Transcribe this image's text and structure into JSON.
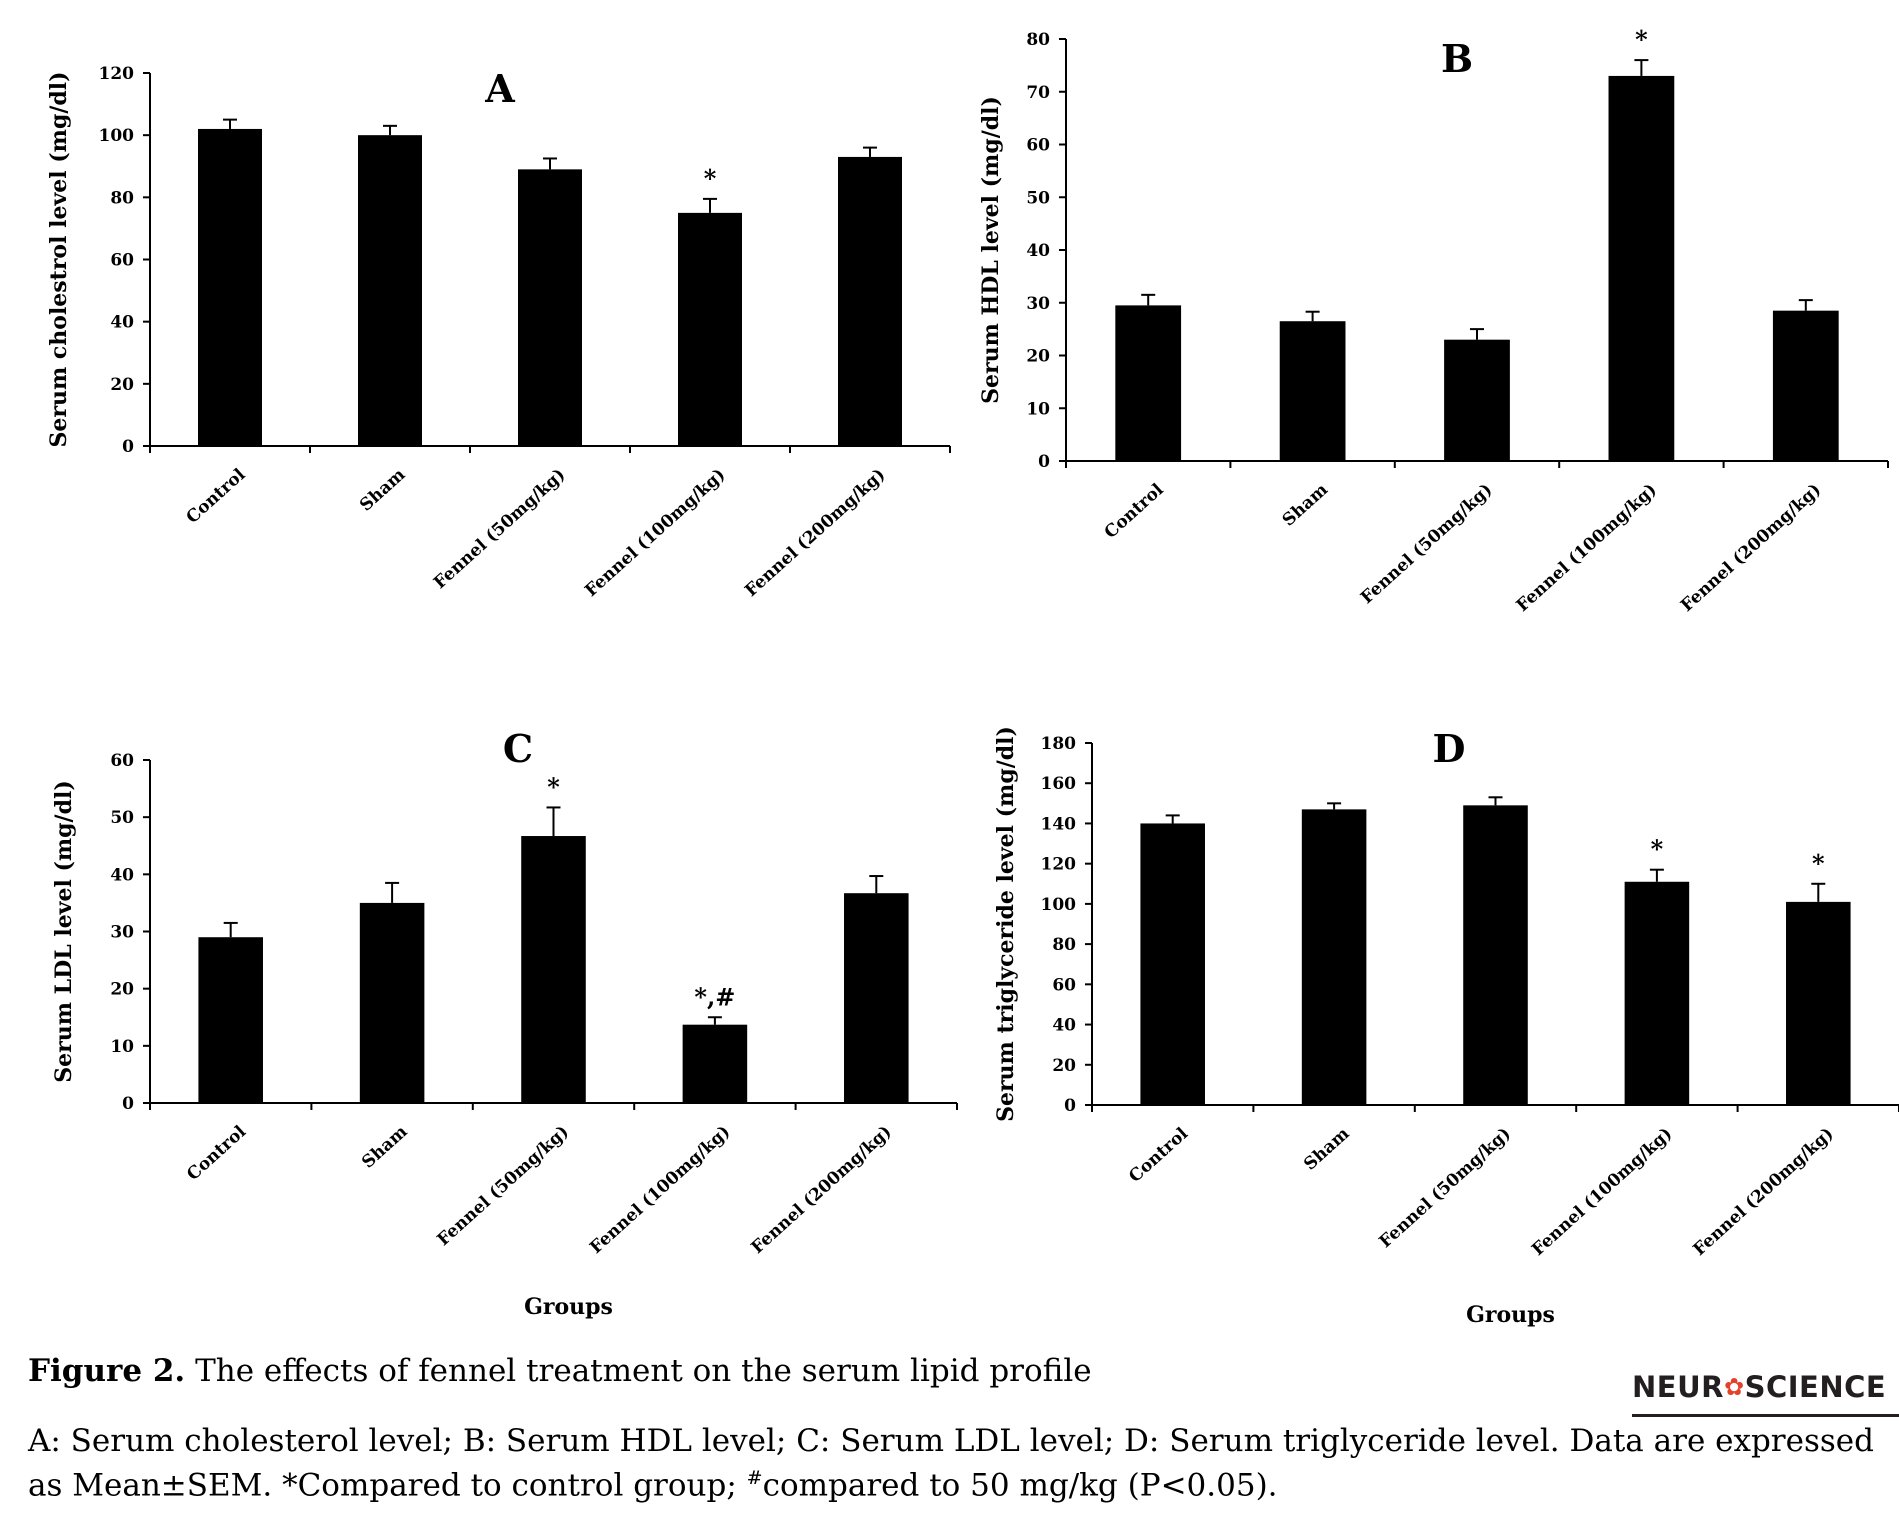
{
  "chart_data": [
    {
      "type": "bar",
      "panel": "A",
      "categories": [
        "Control",
        "Sham",
        "Fennel (50mg/kg)",
        "Fennel (100mg/kg)",
        "Fennel (200mg/kg)"
      ],
      "values": [
        102,
        100,
        89,
        75,
        93
      ],
      "errors": [
        3,
        3,
        3.5,
        4.5,
        3
      ],
      "annotations": [
        "",
        "",
        "",
        "*",
        ""
      ],
      "ylabel": "Serum  cholestrol level (mg/dl)",
      "xlabel": "",
      "ylim": [
        0,
        120
      ],
      "yticks": [
        0,
        20,
        40,
        60,
        80,
        100,
        120
      ],
      "color": "#000000"
    },
    {
      "type": "bar",
      "panel": "B",
      "categories": [
        "Control",
        "Sham",
        "Fennel (50mg/kg)",
        "Fennel (100mg/kg)",
        "Fennel (200mg/kg)"
      ],
      "values": [
        29.5,
        26.5,
        23,
        73,
        28.5
      ],
      "errors": [
        2,
        1.8,
        2,
        3,
        2
      ],
      "annotations": [
        "",
        "",
        "",
        "*",
        ""
      ],
      "ylabel": "Serum  HDL level (mg/dl)",
      "xlabel": "",
      "ylim": [
        0,
        80
      ],
      "yticks": [
        0,
        10,
        20,
        30,
        40,
        50,
        60,
        70,
        80
      ],
      "color": "#000000"
    },
    {
      "type": "bar",
      "panel": "C",
      "categories": [
        "Control",
        "Sham",
        "Fennel (50mg/kg)",
        "Fennel (100mg/kg)",
        "Fennel (200mg/kg)"
      ],
      "values": [
        29,
        35,
        46.7,
        13.7,
        36.7
      ],
      "errors": [
        2.5,
        3.5,
        5,
        1.3,
        3
      ],
      "annotations": [
        "",
        "",
        "*",
        "*,#",
        ""
      ],
      "ylabel": "Serum  LDL level (mg/dl)",
      "xlabel": "Groups",
      "ylim": [
        0,
        60
      ],
      "yticks": [
        0,
        10,
        20,
        30,
        40,
        50,
        60
      ],
      "color": "#000000"
    },
    {
      "type": "bar",
      "panel": "D",
      "categories": [
        "Control",
        "Sham",
        "Fennel (50mg/kg)",
        "Fennel (100mg/kg)",
        "Fennel (200mg/kg)"
      ],
      "values": [
        140,
        147,
        149,
        111,
        101
      ],
      "errors": [
        4,
        3,
        4,
        6,
        9
      ],
      "annotations": [
        "",
        "",
        "",
        "*",
        "*"
      ],
      "ylabel": "Serum  triglyceride  level (mg/dl)",
      "xlabel": "Groups",
      "ylim": [
        0,
        180
      ],
      "yticks": [
        0,
        20,
        40,
        60,
        80,
        100,
        120,
        140,
        160,
        180
      ],
      "color": "#000000"
    }
  ],
  "caption": {
    "title_bold": "Figure 2.",
    "title_rest": " The effects of fennel treatment on the serum lipid profile",
    "body_part1": "A: Serum cholesterol level; B: Serum HDL level; C: Serum LDL level; D: Serum triglyceride level. Data are expressed as Mean±SEM. *Compared to control group; ",
    "body_sup": "#",
    "body_part2": "compared to 50 mg/kg (P<0.05)."
  },
  "brand": {
    "left": "NEUR",
    "mark": "✿",
    "right": "SCIENCE"
  }
}
